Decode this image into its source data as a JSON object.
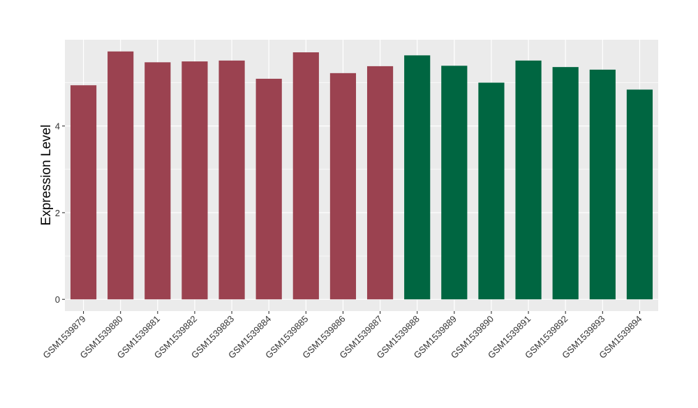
{
  "chart_data": {
    "type": "bar",
    "categories": [
      "GSM1539879",
      "GSM1539880",
      "GSM1539881",
      "GSM1539882",
      "GSM1539883",
      "GSM1539884",
      "GSM1539885",
      "GSM1539886",
      "GSM1539887",
      "GSM1539888",
      "GSM1539889",
      "GSM1539890",
      "GSM1539891",
      "GSM1539892",
      "GSM1539893",
      "GSM1539894"
    ],
    "values": [
      4.94,
      5.72,
      5.47,
      5.49,
      5.51,
      5.09,
      5.7,
      5.22,
      5.38,
      5.63,
      5.39,
      5.0,
      5.51,
      5.36,
      5.3,
      4.84
    ],
    "groups": [
      0,
      0,
      0,
      0,
      0,
      0,
      0,
      0,
      0,
      1,
      1,
      1,
      1,
      1,
      1,
      1
    ],
    "group_colors": [
      "#9b4250",
      "#006641"
    ],
    "title": "",
    "xlabel": "",
    "ylabel": "Expression Level",
    "ylim": [
      -0.27,
      5.99
    ],
    "y_ticks": [
      0,
      2,
      4
    ],
    "y_tick_labels": [
      "0",
      "2",
      "4"
    ],
    "grid": true,
    "panel_background": "#ebebeb",
    "grid_color": "#ffffff"
  }
}
